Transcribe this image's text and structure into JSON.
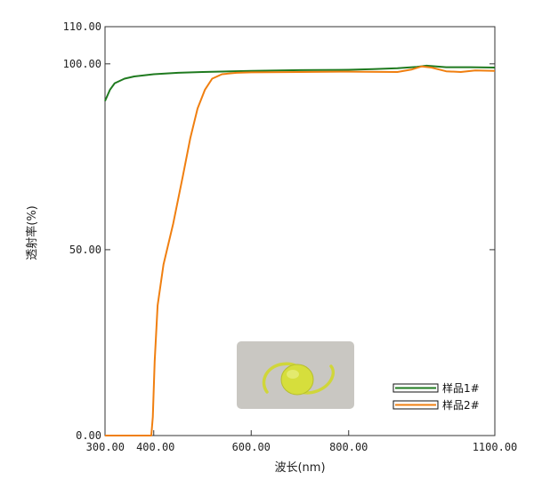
{
  "chart_data": {
    "type": "line",
    "title": "",
    "xlabel": "波长(nm)",
    "ylabel": "透射率(%)",
    "xlim": [
      300,
      1100
    ],
    "ylim": [
      0,
      110
    ],
    "x_tick_labels": [
      "300.00",
      "400.00",
      "600.00",
      "800.00",
      "1100.00"
    ],
    "y_tick_labels": [
      "0.00",
      "50.00",
      "100.00",
      "110.00"
    ],
    "legend_position": "bottom-right",
    "series": [
      {
        "name": "样品1#",
        "color": "#1f7a1f",
        "points": [
          [
            300,
            90
          ],
          [
            310,
            93
          ],
          [
            320,
            94.8
          ],
          [
            340,
            96
          ],
          [
            360,
            96.6
          ],
          [
            400,
            97.2
          ],
          [
            450,
            97.6
          ],
          [
            500,
            97.8
          ],
          [
            600,
            98.1
          ],
          [
            700,
            98.3
          ],
          [
            800,
            98.4
          ],
          [
            850,
            98.6
          ],
          [
            900,
            98.8
          ],
          [
            940,
            99.2
          ],
          [
            960,
            99.5
          ],
          [
            1000,
            99.1
          ],
          [
            1050,
            99.1
          ],
          [
            1100,
            99.0
          ]
        ]
      },
      {
        "name": "样品2#",
        "color": "#f07f10",
        "points": [
          [
            300,
            0
          ],
          [
            395,
            0
          ],
          [
            398,
            5
          ],
          [
            402,
            20
          ],
          [
            408,
            35
          ],
          [
            420,
            46
          ],
          [
            440,
            57
          ],
          [
            460,
            70
          ],
          [
            475,
            80
          ],
          [
            490,
            88
          ],
          [
            505,
            93
          ],
          [
            520,
            96
          ],
          [
            540,
            97.2
          ],
          [
            570,
            97.6
          ],
          [
            600,
            97.7
          ],
          [
            700,
            97.8
          ],
          [
            800,
            97.9
          ],
          [
            900,
            97.8
          ],
          [
            930,
            98.5
          ],
          [
            950,
            99.3
          ],
          [
            970,
            99.0
          ],
          [
            1000,
            98.0
          ],
          [
            1030,
            97.8
          ],
          [
            1060,
            98.2
          ],
          [
            1100,
            98.1
          ]
        ]
      }
    ]
  }
}
